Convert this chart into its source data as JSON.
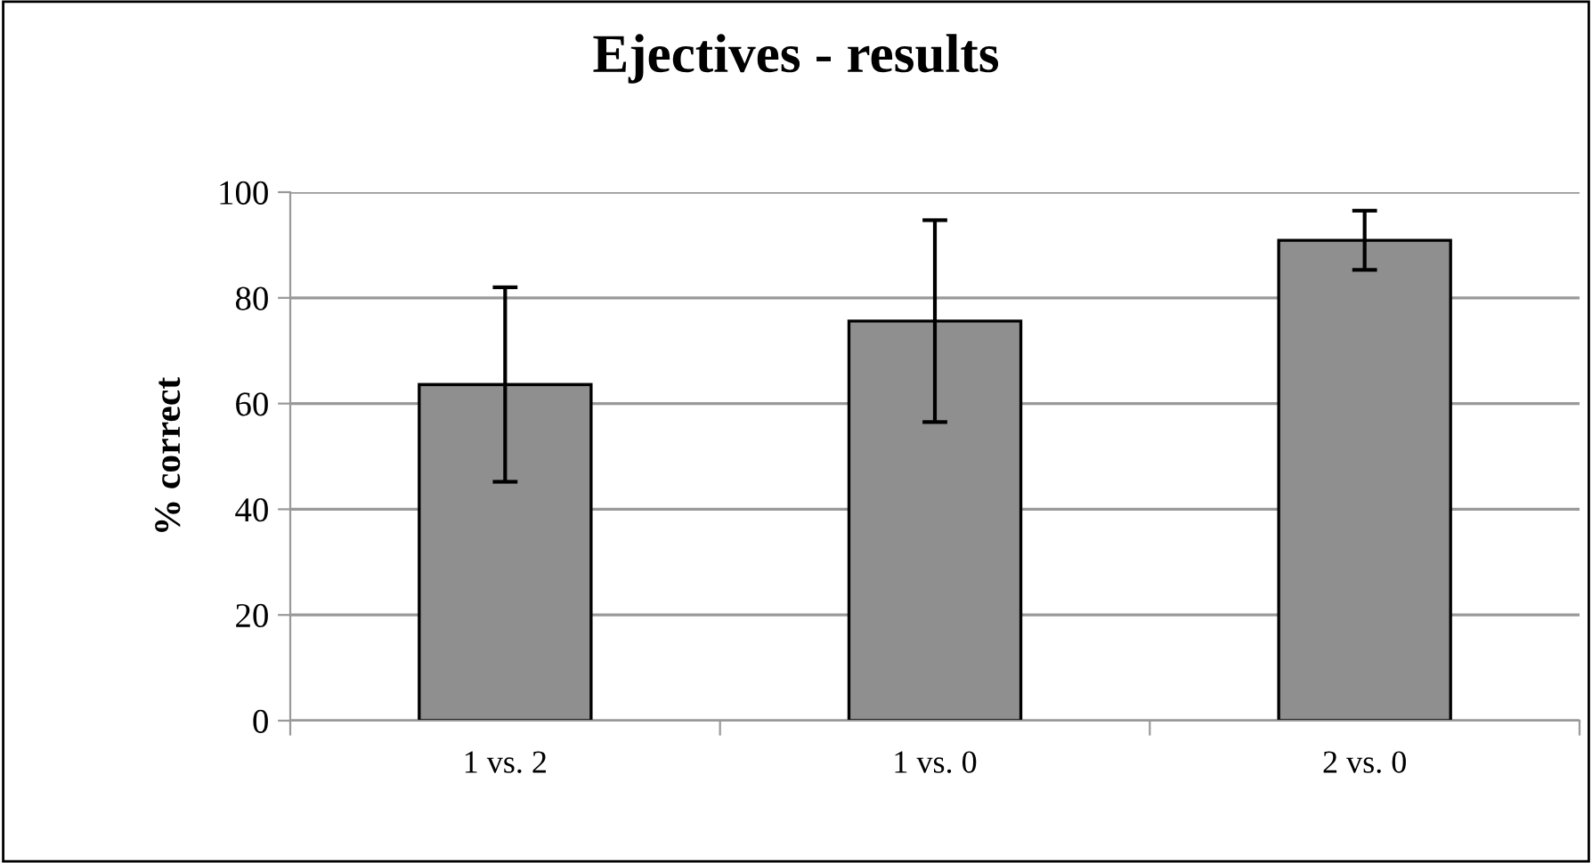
{
  "chart_data": {
    "type": "bar",
    "title": "Ejectives - results",
    "ylabel": "% correct",
    "categories": [
      "1 vs. 2",
      "1 vs. 0",
      "2 vs. 0"
    ],
    "values": [
      63.6,
      75.6,
      90.9
    ],
    "errors": [
      18.4,
      19.1,
      5.6
    ],
    "color": "#8f8f8f",
    "ylim": [
      0,
      100
    ],
    "yticks": [
      0,
      20,
      40,
      60,
      80,
      100
    ],
    "grid": "y"
  }
}
